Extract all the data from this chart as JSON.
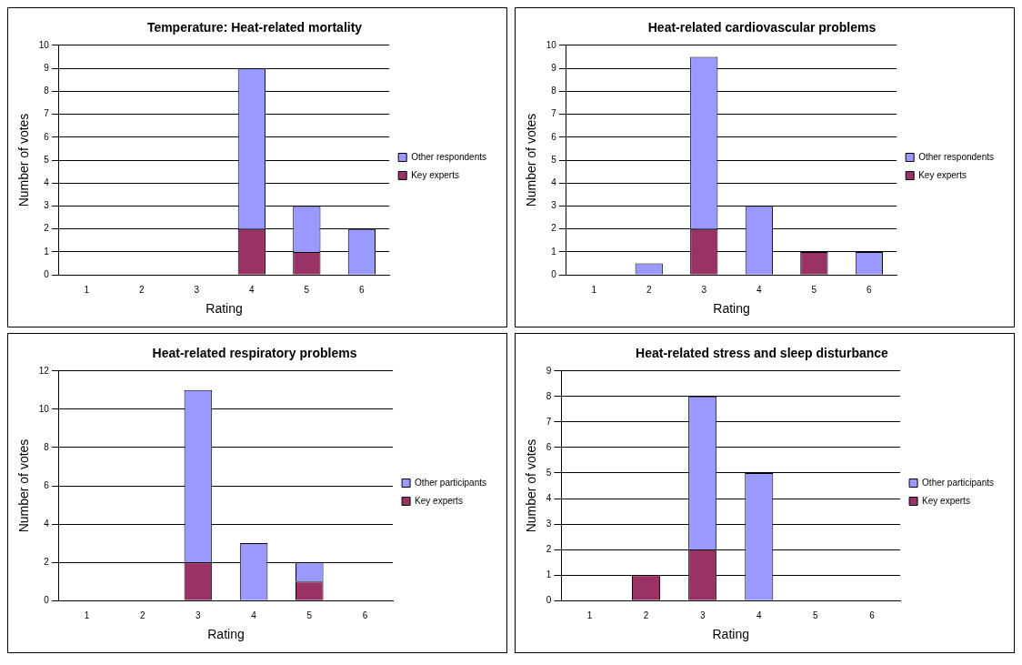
{
  "chart_data": [
    {
      "type": "bar",
      "title": "Temperature: Heat-related mortality",
      "xlabel": "Rating",
      "ylabel": "Number of votes",
      "categories": [
        "1",
        "2",
        "3",
        "4",
        "5",
        "6"
      ],
      "stacked": true,
      "ylim": [
        0,
        10
      ],
      "yticks": [
        0,
        1,
        2,
        3,
        4,
        5,
        6,
        7,
        8,
        9,
        10
      ],
      "grid": "y",
      "legend": "right",
      "series": [
        {
          "name": "Key experts",
          "color": "#993366",
          "values": [
            0,
            0,
            0,
            2,
            1,
            0
          ]
        },
        {
          "name": "Other respondents",
          "color": "#9999ff",
          "values": [
            0,
            0,
            0,
            7,
            2,
            2
          ]
        }
      ]
    },
    {
      "type": "bar",
      "title": "Heat-related cardiovascular problems",
      "xlabel": "Rating",
      "ylabel": "Number of votes",
      "categories": [
        "1",
        "2",
        "3",
        "4",
        "5",
        "6"
      ],
      "stacked": true,
      "ylim": [
        0,
        10
      ],
      "yticks": [
        0,
        1,
        2,
        3,
        4,
        5,
        6,
        7,
        8,
        9,
        10
      ],
      "grid": "y",
      "legend": "right",
      "series": [
        {
          "name": "Key experts",
          "color": "#993366",
          "values": [
            0,
            0,
            2,
            0,
            1,
            0
          ]
        },
        {
          "name": "Other respondents",
          "color": "#9999ff",
          "values": [
            0,
            0.5,
            7.5,
            3,
            0,
            1
          ]
        }
      ]
    },
    {
      "type": "bar",
      "title": "Heat-related respiratory problems",
      "xlabel": "Rating",
      "ylabel": "Number of votes",
      "categories": [
        "1",
        "2",
        "3",
        "4",
        "5",
        "6"
      ],
      "stacked": true,
      "ylim": [
        0,
        12
      ],
      "yticks": [
        0,
        2,
        4,
        6,
        8,
        10,
        12
      ],
      "grid": "y",
      "legend": "right",
      "series": [
        {
          "name": "Key experts",
          "color": "#993366",
          "values": [
            0,
            0,
            2,
            0,
            1,
            0
          ]
        },
        {
          "name": "Other participants",
          "color": "#9999ff",
          "values": [
            0,
            0,
            9,
            3,
            1,
            0
          ]
        }
      ]
    },
    {
      "type": "bar",
      "title": "Heat-related stress and sleep disturbance",
      "xlabel": "Rating",
      "ylabel": "Number of votes",
      "categories": [
        "1",
        "2",
        "3",
        "4",
        "5",
        "6"
      ],
      "stacked": true,
      "ylim": [
        0,
        9
      ],
      "yticks": [
        0,
        1,
        2,
        3,
        4,
        5,
        6,
        7,
        8,
        9
      ],
      "grid": "y",
      "legend": "right",
      "series": [
        {
          "name": "Key experts",
          "color": "#993366",
          "values": [
            0,
            1,
            2,
            0,
            0,
            0
          ]
        },
        {
          "name": "Other participants",
          "color": "#9999ff",
          "values": [
            0,
            0,
            6,
            5,
            0,
            0
          ]
        }
      ]
    }
  ]
}
